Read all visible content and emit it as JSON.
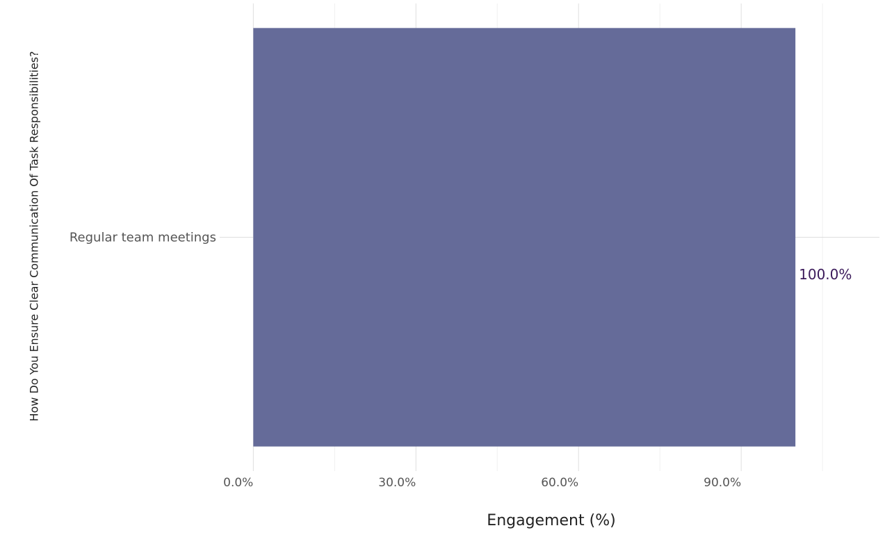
{
  "chart_data": {
    "type": "hbar",
    "xlabel": "Engagement (%)",
    "ylabel": "How Do You Ensure Clear Communication Of Task Responsibilities?",
    "categories": [
      "Regular team meetings"
    ],
    "values": [
      100
    ],
    "value_labels": [
      "100.0%"
    ],
    "color": "#656b99",
    "value_label_color": "#3b1a5a",
    "xlim": [
      -6.2,
      115.5
    ],
    "xticks": [
      {
        "value": 0,
        "label": "0.0%"
      },
      {
        "value": 30,
        "label": "30.0%"
      },
      {
        "value": 60,
        "label": "60.0%"
      },
      {
        "value": 90,
        "label": "90.0%"
      }
    ],
    "minor_xticks": [
      15,
      45,
      75,
      105
    ],
    "grid": true
  }
}
